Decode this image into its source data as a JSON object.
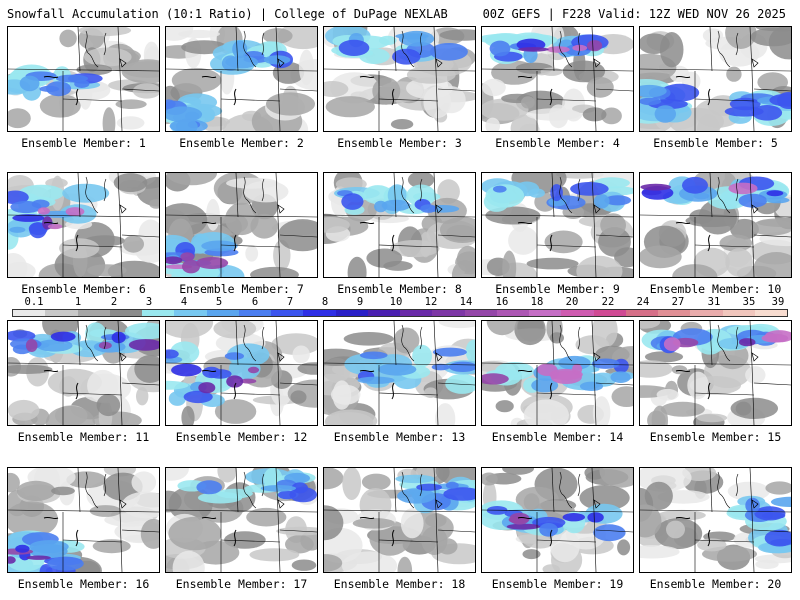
{
  "header": {
    "title_left": "Snowfall Accumulation (10:1 Ratio) | College of DuPage NEXLAB",
    "title_right": "00Z GEFS | F228 Valid: 12Z WED NOV 26 2025"
  },
  "colorbar": {
    "labels": [
      "0.1",
      "1",
      "2",
      "3",
      "4",
      "5",
      "6",
      "7",
      "8",
      "9",
      "10",
      "12",
      "14",
      "16",
      "18",
      "20",
      "22",
      "24",
      "27",
      "31",
      "35",
      "39"
    ],
    "colors": [
      "#e9e9e9",
      "#c8c8c8",
      "#a6a6a6",
      "#8c8c8c",
      "#9ae8ef",
      "#78c8f0",
      "#5aa5ee",
      "#4b7ef0",
      "#3c55ee",
      "#2f2fe6",
      "#2a20c8",
      "#4a1fb0",
      "#6a2aa8",
      "#7e37a6",
      "#9446a8",
      "#ad57b4",
      "#c56ec5",
      "#cf5bb0",
      "#d04a94",
      "#d66f88",
      "#e08f95",
      "#e9acac",
      "#f1c6bd",
      "#f8dcd0"
    ]
  },
  "members": [
    {
      "label": "Ensemble Member: 1",
      "snow_band": "west-central",
      "intensity": "moderate"
    },
    {
      "label": "Ensemble Member: 2",
      "snow_band": "north-scattered",
      "intensity": "light"
    },
    {
      "label": "Ensemble Member: 3",
      "snow_band": "north",
      "intensity": "moderate"
    },
    {
      "label": "Ensemble Member: 4",
      "snow_band": "north",
      "intensity": "heavy"
    },
    {
      "label": "Ensemble Member: 5",
      "snow_band": "south-scattered",
      "intensity": "moderate"
    },
    {
      "label": "Ensemble Member: 6",
      "snow_band": "west",
      "intensity": "heavy"
    },
    {
      "label": "Ensemble Member: 7",
      "snow_band": "southwest",
      "intensity": "heavy"
    },
    {
      "label": "Ensemble Member: 8",
      "snow_band": "north-central",
      "intensity": "moderate"
    },
    {
      "label": "Ensemble Member: 9",
      "snow_band": "north",
      "intensity": "moderate"
    },
    {
      "label": "Ensemble Member: 10",
      "snow_band": "north",
      "intensity": "heavy"
    },
    {
      "label": "Ensemble Member: 11",
      "snow_band": "north",
      "intensity": "heavy"
    },
    {
      "label": "Ensemble Member: 12",
      "snow_band": "west-diagonal",
      "intensity": "heavy"
    },
    {
      "label": "Ensemble Member: 13",
      "snow_band": "diagonal",
      "intensity": "moderate"
    },
    {
      "label": "Ensemble Member: 14",
      "snow_band": "central",
      "intensity": "heavy"
    },
    {
      "label": "Ensemble Member: 15",
      "snow_band": "north",
      "intensity": "heavy"
    },
    {
      "label": "Ensemble Member: 16",
      "snow_band": "southwest",
      "intensity": "heavy"
    },
    {
      "label": "Ensemble Member: 17",
      "snow_band": "north",
      "intensity": "moderate"
    },
    {
      "label": "Ensemble Member: 18",
      "snow_band": "northeast",
      "intensity": "light"
    },
    {
      "label": "Ensemble Member: 19",
      "snow_band": "central",
      "intensity": "heavy"
    },
    {
      "label": "Ensemble Member: 20",
      "snow_band": "east",
      "intensity": "moderate"
    }
  ]
}
